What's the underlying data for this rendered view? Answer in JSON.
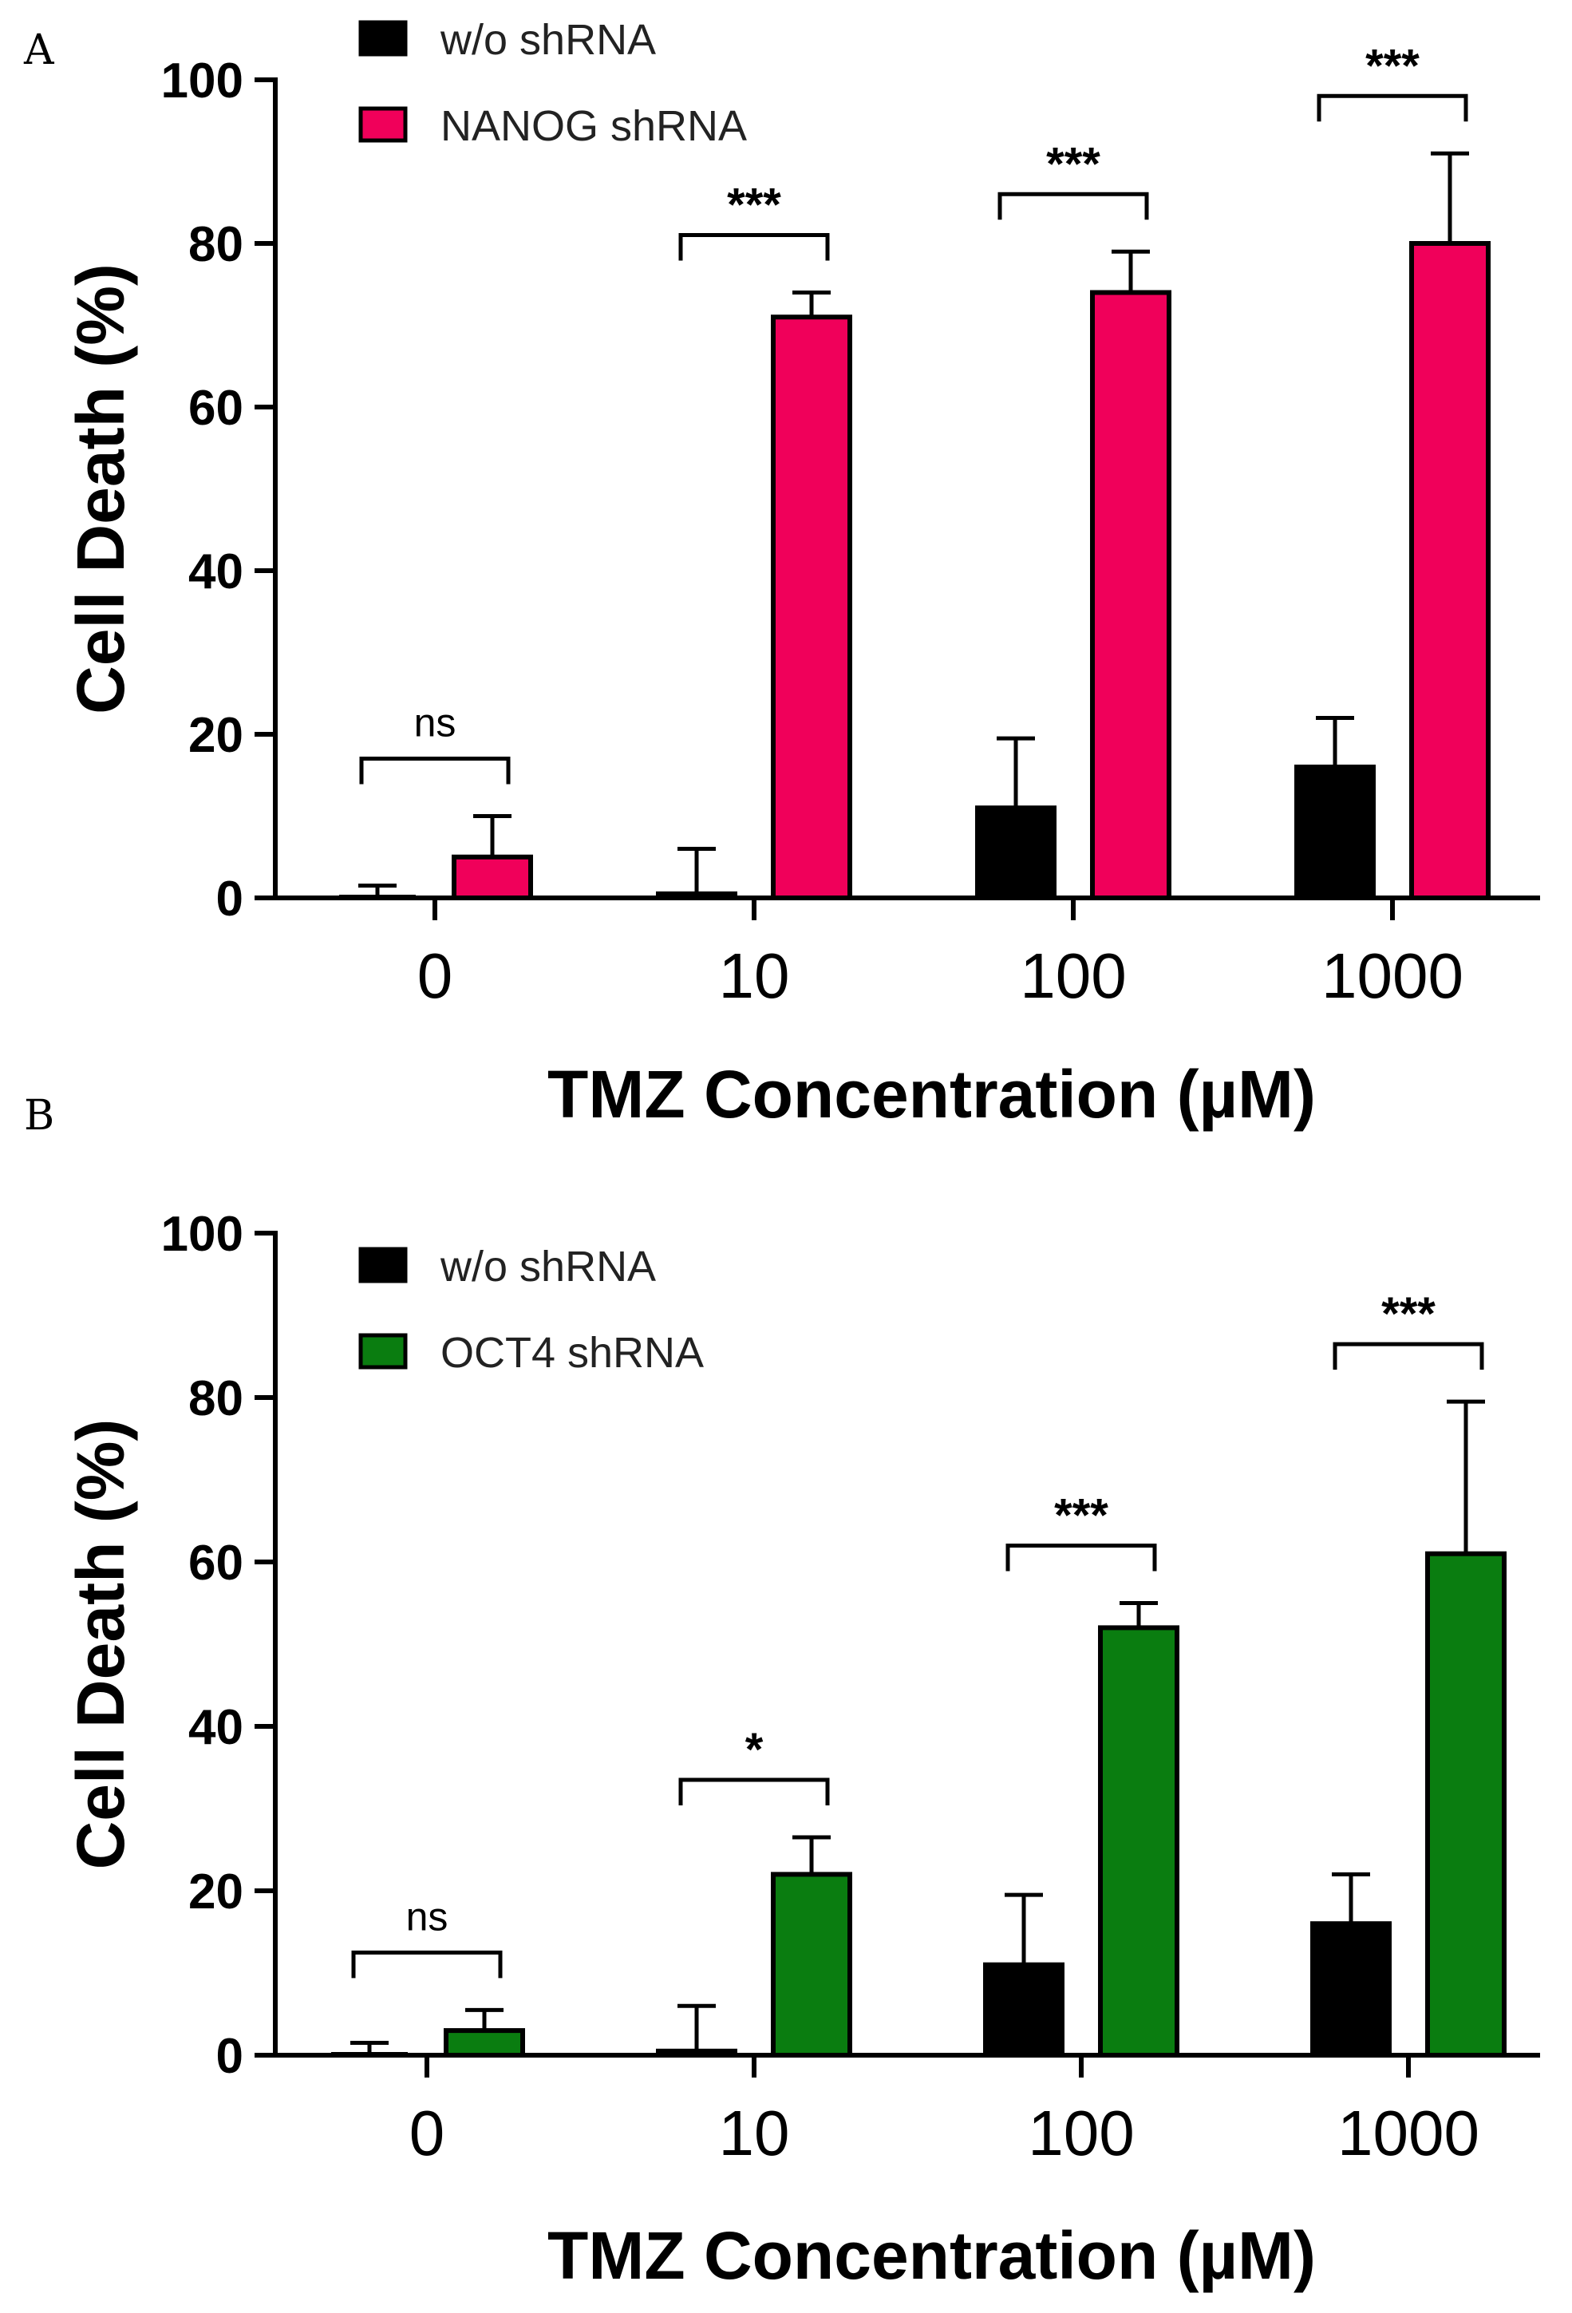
{
  "chart_data": [
    {
      "type": "bar",
      "panel_label": "A",
      "categories": [
        "0",
        "10",
        "100",
        "1000"
      ],
      "series": [
        {
          "name": "w/o shRNA",
          "color": "#000000",
          "values": [
            0,
            0.5,
            11,
            16
          ],
          "errors": [
            1.5,
            5.5,
            8.5,
            6
          ]
        },
        {
          "name": "NANOG shRNA",
          "color": "#f0005a",
          "values": [
            5,
            71,
            74,
            80
          ],
          "errors": [
            5,
            3,
            5,
            11
          ]
        }
      ],
      "significance": [
        "ns",
        "***",
        "***",
        "***"
      ],
      "xlabel": "TMZ Concentration (µM)",
      "ylabel": "Cell Death (%)",
      "ylim": [
        0,
        100
      ],
      "yticks": [
        "0",
        "20",
        "40",
        "60",
        "80",
        "100"
      ]
    },
    {
      "type": "bar",
      "panel_label": "B",
      "categories": [
        "0",
        "10",
        "100",
        "1000"
      ],
      "series": [
        {
          "name": "w/o shRNA",
          "color": "#000000",
          "values": [
            0,
            0.5,
            11,
            16
          ],
          "errors": [
            1.5,
            5.5,
            8.5,
            6
          ]
        },
        {
          "name": "OCT4 shRNA",
          "color": "#0a7d10",
          "values": [
            3,
            22,
            52,
            61
          ],
          "errors": [
            2.5,
            4.5,
            3,
            18.5
          ]
        }
      ],
      "significance": [
        "ns",
        "*",
        "***",
        "***"
      ],
      "xlabel": "TMZ Concentration (µM)",
      "ylabel": "Cell Death (%)",
      "ylim": [
        0,
        100
      ],
      "yticks": [
        "0",
        "20",
        "40",
        "60",
        "80",
        "100"
      ]
    }
  ]
}
